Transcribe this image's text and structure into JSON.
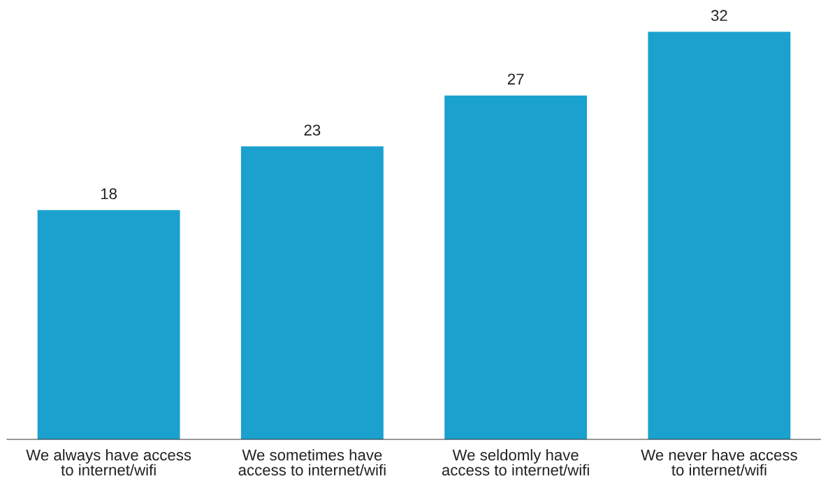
{
  "chart_data": {
    "type": "bar",
    "categories": [
      "We always have access to internet/wifi",
      "We sometimes have access to internet/wifi",
      "We seldomly have access to internet/wifi",
      "We never have access to internet/wifi"
    ],
    "values": [
      18,
      23,
      27,
      32
    ],
    "color": "#1aa1ce",
    "data_labels": true,
    "grid": false,
    "legend": false
  }
}
